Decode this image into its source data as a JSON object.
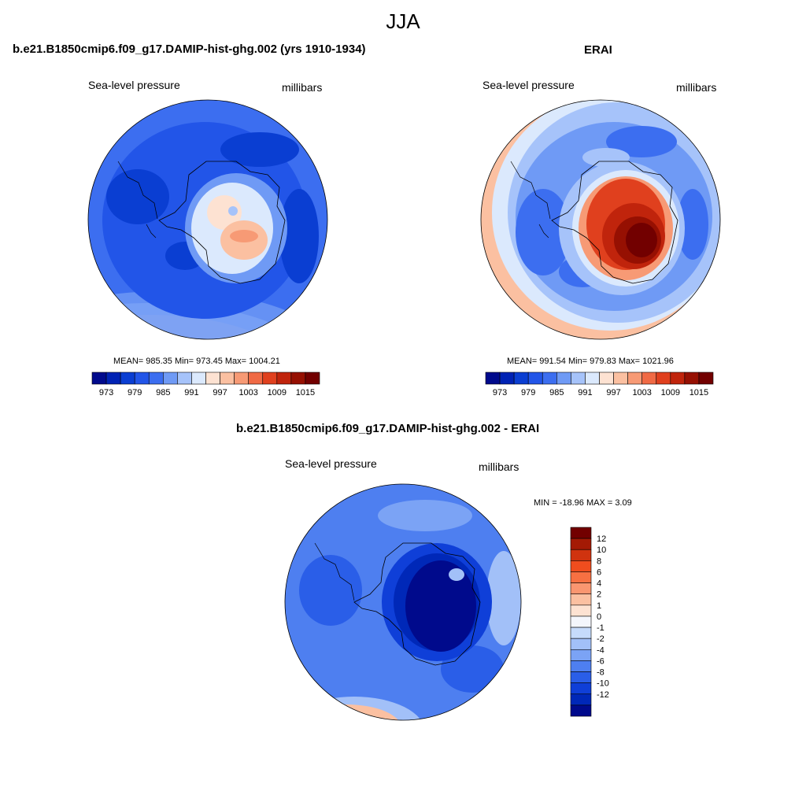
{
  "figure": {
    "title": "JJA"
  },
  "panels": [
    {
      "title": "b.e21.B1850cmip6.f09_g17.DAMIP-hist-ghg.002 (yrs 1910-1934)",
      "left_label": "Sea-level pressure",
      "right_label": "millibars",
      "stats": "MEAN= 985.35  Min= 973.45  Max= 1004.21",
      "colorbar_ticks": [
        "973",
        "979",
        "985",
        "991",
        "997",
        "1003",
        "1009",
        "1015"
      ]
    },
    {
      "title": "ERAI",
      "left_label": "Sea-level pressure",
      "right_label": "millibars",
      "stats": "MEAN= 991.54  Min= 979.83  Max= 1021.96",
      "colorbar_ticks": [
        "973",
        "979",
        "985",
        "991",
        "997",
        "1003",
        "1009",
        "1015"
      ]
    },
    {
      "title": "b.e21.B1850cmip6.f09_g17.DAMIP-hist-ghg.002 - ERAI",
      "left_label": "Sea-level pressure",
      "right_label": "millibars",
      "stats": "MIN = -18.96 MAX =   3.09",
      "colorbar_ticks": [
        "12",
        "10",
        "8",
        "6",
        "4",
        "2",
        "1",
        "0",
        "-1",
        "-2",
        "-4",
        "-6",
        "-8",
        "-10",
        "-12"
      ]
    }
  ],
  "colors": {
    "abs_scale": [
      "#000a8c",
      "#0022b4",
      "#0a3ed2",
      "#2255e8",
      "#3c6ef0",
      "#6f9af5",
      "#a6c3fa",
      "#dbe9fd",
      "#fde2d2",
      "#fbc0a1",
      "#f79a75",
      "#f06a45",
      "#e0401e",
      "#c0240c",
      "#961002",
      "#720000"
    ],
    "diff_scale": [
      "#720000",
      "#a41a05",
      "#d0330f",
      "#f04d1e",
      "#f77042",
      "#fa9670",
      "#fbc0a1",
      "#fde2d2",
      "#f4f6fc",
      "#c6dbfb",
      "#a2c0f8",
      "#7ba3f5",
      "#4e7ff0",
      "#2a5ee8",
      "#0f3fd8",
      "#0028b8",
      "#000a8c"
    ]
  },
  "chart_data": [
    {
      "type": "heatmap",
      "projection": "south-polar stereographic",
      "title": "b.e21.B1850cmip6.f09_g17.DAMIP-hist-ghg.002 (yrs 1910-1934)",
      "variable": "Sea-level pressure",
      "units": "millibars",
      "mean": 985.35,
      "min": 973.45,
      "max": 1004.21,
      "contour_levels": [
        970,
        973,
        976,
        979,
        982,
        985,
        988,
        991,
        994,
        997,
        1000,
        1003,
        1006,
        1009,
        1012,
        1015
      ]
    },
    {
      "type": "heatmap",
      "projection": "south-polar stereographic",
      "title": "ERAI",
      "variable": "Sea-level pressure",
      "units": "millibars",
      "mean": 991.54,
      "min": 979.83,
      "max": 1021.96,
      "contour_levels": [
        970,
        973,
        976,
        979,
        982,
        985,
        988,
        991,
        994,
        997,
        1000,
        1003,
        1006,
        1009,
        1012,
        1015
      ]
    },
    {
      "type": "heatmap",
      "projection": "south-polar stereographic",
      "title": "b.e21.B1850cmip6.f09_g17.DAMIP-hist-ghg.002 - ERAI",
      "variable": "Sea-level pressure",
      "units": "millibars",
      "min": -18.96,
      "max": 3.09,
      "contour_levels": [
        -12,
        -10,
        -8,
        -6,
        -4,
        -2,
        -1,
        0,
        1,
        2,
        4,
        6,
        8,
        10,
        12
      ]
    }
  ]
}
